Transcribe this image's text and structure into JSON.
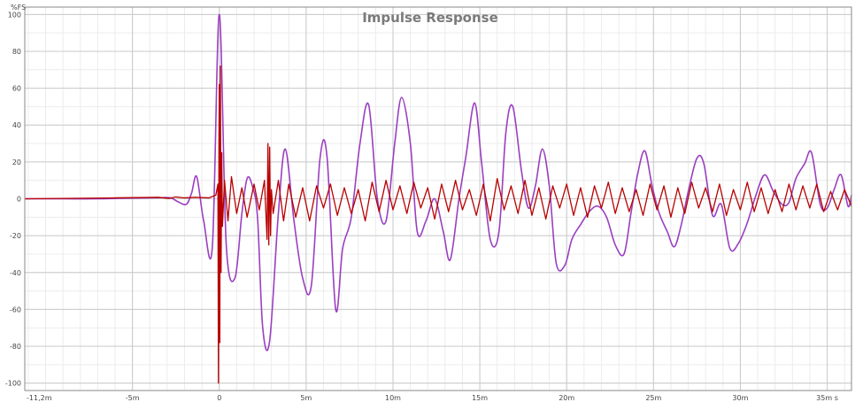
{
  "chart_data": {
    "type": "line",
    "title": "Impulse Response",
    "ylabel": "%FS",
    "xlabel": "",
    "x_unit_suffix": "s",
    "xlim": [
      -0.0112,
      0.0364
    ],
    "ylim": [
      -104,
      104
    ],
    "grid": true,
    "legend": "none",
    "x_ticks": [
      {
        "value": -0.0112,
        "label": "-11,2m"
      },
      {
        "value": -0.005,
        "label": "-5m"
      },
      {
        "value": 0,
        "label": "0"
      },
      {
        "value": 0.005,
        "label": "5m"
      },
      {
        "value": 0.01,
        "label": "10m"
      },
      {
        "value": 0.015,
        "label": "15m"
      },
      {
        "value": 0.02,
        "label": "20m"
      },
      {
        "value": 0.025,
        "label": "25m"
      },
      {
        "value": 0.03,
        "label": "30m"
      },
      {
        "value": 0.035,
        "label": "35m s"
      }
    ],
    "y_ticks": [
      {
        "value": 100,
        "label": "100"
      },
      {
        "value": 80,
        "label": "80"
      },
      {
        "value": 60,
        "label": "60"
      },
      {
        "value": 40,
        "label": "40"
      },
      {
        "value": 20,
        "label": "20"
      },
      {
        "value": 0,
        "label": "0"
      },
      {
        "value": -20,
        "label": "-20"
      },
      {
        "value": -40,
        "label": "-40"
      },
      {
        "value": -60,
        "label": "-60"
      },
      {
        "value": -80,
        "label": "-80"
      },
      {
        "value": -100,
        "label": "-100"
      }
    ],
    "series": [
      {
        "color": "#9a3fc0",
        "x": [
          -0.0112,
          -0.009,
          -0.007,
          -0.005,
          -0.0035,
          -0.0028,
          -0.0024,
          -0.0019,
          -0.0016,
          -0.0013,
          -0.0009,
          -0.0004,
          0,
          0.0004,
          0.0009,
          0.0013,
          0.0016,
          0.0019,
          0.0022,
          0.0025,
          0.0029,
          0.0034,
          0.0038,
          0.0043,
          0.0048,
          0.0053,
          0.0058,
          0.0062,
          0.0067,
          0.0071,
          0.0076,
          0.0081,
          0.0086,
          0.0091,
          0.0096,
          0.0101,
          0.0105,
          0.011,
          0.0114,
          0.0119,
          0.0124,
          0.0129,
          0.0133,
          0.0138,
          0.0142,
          0.0147,
          0.0151,
          0.0156,
          0.0161,
          0.0165,
          0.0169,
          0.0174,
          0.0178,
          0.0182,
          0.0186,
          0.019,
          0.0194,
          0.0199,
          0.0203,
          0.0208,
          0.0213,
          0.0218,
          0.0223,
          0.0228,
          0.0233,
          0.0237,
          0.0241,
          0.0245,
          0.0249,
          0.0253,
          0.0258,
          0.0262,
          0.0266,
          0.027,
          0.0275,
          0.0279,
          0.0284,
          0.0289,
          0.0294,
          0.0299,
          0.0304,
          0.0309,
          0.0314,
          0.0319,
          0.0324,
          0.0328,
          0.0332,
          0.0337,
          0.0341,
          0.0346,
          0.035,
          0.0354,
          0.0358,
          0.0362,
          0.0364
        ],
        "y": [
          0,
          0,
          0,
          0.4,
          0.6,
          0.5,
          -1.5,
          -3,
          3,
          12,
          -12,
          -26,
          100,
          -25,
          -43,
          -8,
          11,
          7,
          -10,
          -70,
          -77,
          -8,
          27,
          -12,
          -43,
          -47,
          22,
          23,
          -60,
          -27,
          -10,
          30,
          51,
          0,
          -12,
          30,
          55,
          30,
          -18,
          -12,
          0,
          -18,
          -33,
          0,
          23,
          52,
          20,
          -22,
          -18,
          36,
          50,
          15,
          -5,
          7,
          27,
          7,
          -35,
          -36,
          -22,
          -14,
          -7,
          -4,
          -10,
          -25,
          -30,
          -8,
          14,
          26,
          8,
          -7,
          -18,
          -26,
          -14,
          4,
          22,
          19,
          -9,
          -3,
          -27,
          -24,
          -13,
          2,
          13,
          4,
          -3,
          -2,
          11,
          19,
          25,
          -3,
          -5,
          5,
          13,
          -4,
          2
        ]
      },
      {
        "color": "#b80000",
        "x": [
          -0.0112,
          -0.006,
          -0.0035,
          -0.0029,
          -0.0025,
          -0.002,
          -0.0014,
          -0.0006,
          -0.0002,
          -8e-05,
          -5e-05,
          -2e-05,
          0,
          3e-05,
          6e-05,
          0.0001,
          0.00014,
          0.00018,
          0.0003,
          0.0005,
          0.0007,
          0.001,
          0.0013,
          0.0016,
          0.002,
          0.0023,
          0.0026,
          0.00275,
          0.0028,
          0.00285,
          0.0029,
          0.00295,
          0.003,
          0.0031,
          0.0034,
          0.0037,
          0.004,
          0.0044,
          0.0048,
          0.0052,
          0.0056,
          0.006,
          0.0064,
          0.0068,
          0.0072,
          0.0076,
          0.008,
          0.0084,
          0.0088,
          0.0092,
          0.0096,
          0.01,
          0.0104,
          0.0108,
          0.0112,
          0.0116,
          0.012,
          0.0124,
          0.0128,
          0.0132,
          0.0136,
          0.014,
          0.0144,
          0.0148,
          0.0152,
          0.0156,
          0.016,
          0.0164,
          0.0168,
          0.0172,
          0.0176,
          0.018,
          0.0184,
          0.0188,
          0.0192,
          0.0196,
          0.02,
          0.0204,
          0.0208,
          0.0212,
          0.0216,
          0.022,
          0.0224,
          0.0228,
          0.0232,
          0.0236,
          0.024,
          0.0244,
          0.0248,
          0.0252,
          0.0256,
          0.026,
          0.0264,
          0.0268,
          0.0272,
          0.0276,
          0.028,
          0.0284,
          0.0288,
          0.0292,
          0.0296,
          0.03,
          0.0304,
          0.0308,
          0.0312,
          0.0316,
          0.032,
          0.0324,
          0.0328,
          0.0332,
          0.0336,
          0.034,
          0.0344,
          0.0348,
          0.0352,
          0.0356,
          0.036,
          0.0364
        ],
        "y": [
          0,
          0.5,
          0.8,
          0.2,
          1,
          0.5,
          0.8,
          0.5,
          2,
          8,
          -100,
          30,
          62,
          -78,
          72,
          -40,
          25,
          -15,
          10,
          -12,
          12,
          -8,
          6,
          -10,
          8,
          -6,
          10,
          -22,
          30,
          -25,
          28,
          -20,
          5,
          -8,
          10,
          -12,
          8,
          -10,
          6,
          -12,
          7,
          -5,
          8,
          -9,
          6,
          -8,
          5,
          -12,
          9,
          -7,
          10,
          -6,
          7,
          -8,
          9,
          -5,
          6,
          -11,
          8,
          -7,
          10,
          -6,
          5,
          -9,
          8,
          -12,
          11,
          -6,
          7,
          -8,
          10,
          -9,
          6,
          -11,
          7,
          -5,
          8,
          -9,
          6,
          -10,
          7,
          -5,
          9,
          -8,
          6,
          -7,
          5,
          -9,
          8,
          -6,
          7,
          -10,
          6,
          -8,
          9,
          -5,
          6,
          -7,
          8,
          -9,
          5,
          -6,
          9,
          -7,
          6,
          -8,
          5,
          -7,
          8,
          -6,
          7,
          -5,
          8,
          -7,
          4,
          -6,
          5,
          -4
        ]
      }
    ]
  }
}
